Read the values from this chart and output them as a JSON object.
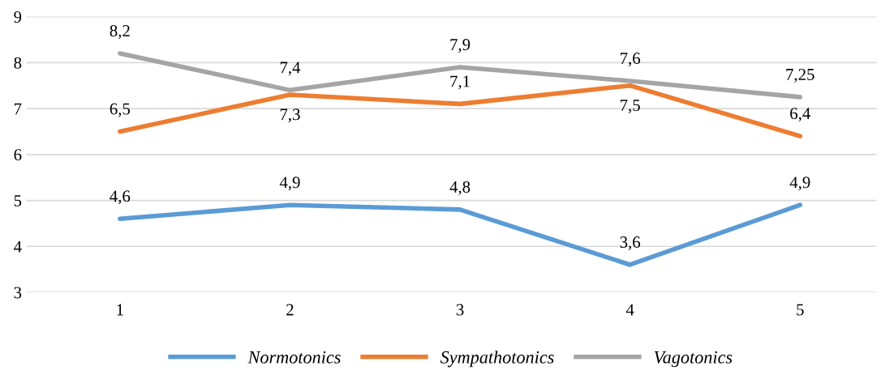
{
  "chart_data": {
    "type": "line",
    "categories": [
      "1",
      "2",
      "3",
      "4",
      "5"
    ],
    "series": [
      {
        "name": "Normotonics",
        "color": "#5b9bd5",
        "values": [
          4.6,
          4.9,
          4.8,
          3.6,
          4.9
        ],
        "value_labels": [
          "4,6",
          "4,9",
          "4,8",
          "3,6",
          "4,9"
        ]
      },
      {
        "name": "Sympathotonics",
        "color": "#ed7d31",
        "values": [
          6.5,
          7.3,
          7.1,
          7.5,
          6.4
        ],
        "value_labels": [
          "6,5",
          "7,3",
          "7,1",
          "7,5",
          "6,4"
        ]
      },
      {
        "name": "Vagotonics",
        "color": "#a5a5a5",
        "values": [
          8.2,
          7.4,
          7.9,
          7.6,
          7.25
        ],
        "value_labels": [
          "8,2",
          "7,4",
          "7,9",
          "7,6",
          "7,25"
        ]
      }
    ],
    "ylim": [
      3,
      9
    ],
    "yticks": [
      3,
      4,
      5,
      6,
      7,
      8,
      9
    ],
    "grid": "y",
    "legend": "bottom",
    "marker": "none",
    "line_style": "solid"
  }
}
